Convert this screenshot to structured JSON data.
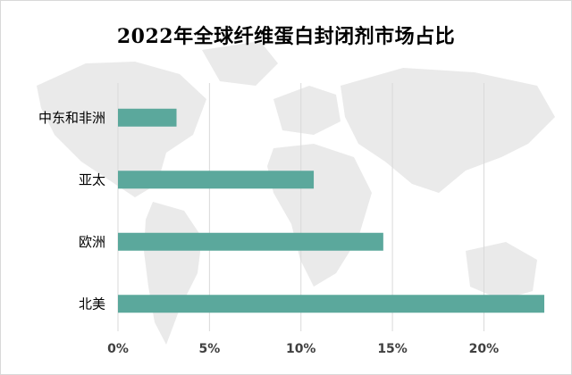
{
  "chart_data": {
    "type": "bar",
    "orientation": "horizontal",
    "title": "2022年全球纤维蛋白封闭剂市场占比",
    "categories": [
      "中东和非洲",
      "亚太",
      "欧洲",
      "北美"
    ],
    "values": [
      3.2,
      10.7,
      14.5,
      23.3
    ],
    "value_unit": "%",
    "xlim": [
      0,
      23.3
    ],
    "xticks": [
      0,
      5,
      10,
      15,
      20
    ],
    "xtick_labels": [
      "0%",
      "5%",
      "10%",
      "15%",
      "20%"
    ],
    "xlabel": "",
    "ylabel": "",
    "grid": "vertical",
    "legend": "none",
    "bar_color": "#5ba89c",
    "grid_color": "#d9d9d9",
    "background_decoration": "faint world map"
  }
}
